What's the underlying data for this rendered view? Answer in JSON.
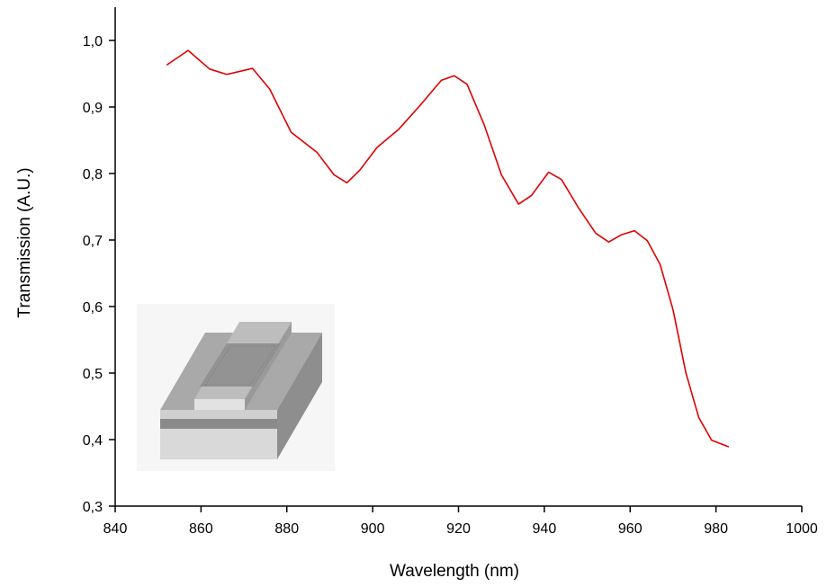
{
  "chart_data": {
    "type": "line",
    "x_label": "Wavelength (nm)",
    "y_label": "Transmission (A.U.)",
    "x": [
      852,
      857,
      862,
      866,
      872,
      876,
      881,
      887,
      891,
      894,
      897,
      901,
      906,
      911,
      916,
      919,
      922,
      926,
      930,
      934,
      937,
      941,
      944,
      948,
      952,
      955,
      958,
      961,
      964,
      967,
      970,
      973,
      976,
      979,
      983
    ],
    "series": [
      {
        "color": "#e00000",
        "values": [
          0.963,
          0.985,
          0.957,
          0.949,
          0.958,
          0.927,
          0.862,
          0.832,
          0.798,
          0.786,
          0.805,
          0.839,
          0.866,
          0.902,
          0.94,
          0.947,
          0.934,
          0.873,
          0.798,
          0.754,
          0.767,
          0.802,
          0.791,
          0.748,
          0.71,
          0.697,
          0.708,
          0.714,
          0.699,
          0.663,
          0.595,
          0.5,
          0.433,
          0.399,
          0.389
        ]
      }
    ],
    "xlim": [
      840,
      1000
    ],
    "ylim": [
      0.3,
      1.05
    ],
    "xticks": [
      840,
      860,
      880,
      900,
      920,
      940,
      960,
      980,
      1000
    ],
    "yticks": [
      {
        "value": 0.3,
        "label": "0,3"
      },
      {
        "value": 0.4,
        "label": "0,4"
      },
      {
        "value": 0.5,
        "label": "0,5"
      },
      {
        "value": 0.6,
        "label": "0,6"
      },
      {
        "value": 0.7,
        "label": "0,7"
      },
      {
        "value": 0.8,
        "label": "0,8"
      },
      {
        "value": 0.9,
        "label": "0,9"
      },
      {
        "value": 1.0,
        "label": "1,0"
      }
    ],
    "grid": false
  }
}
